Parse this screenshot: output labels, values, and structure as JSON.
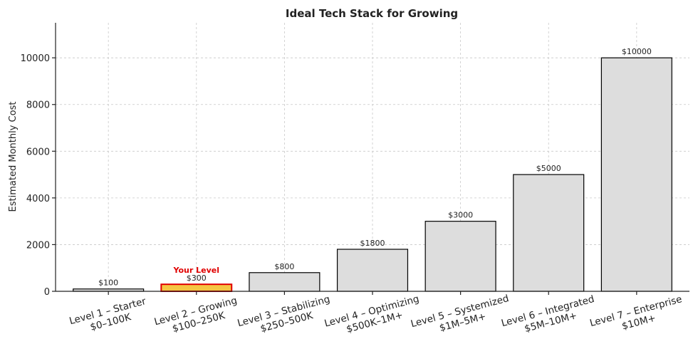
{
  "chart_data": {
    "type": "bar",
    "title": "Ideal Tech Stack for Growing",
    "xlabel": "",
    "ylabel": "Estimated Monthly Cost",
    "ylim": [
      0,
      11500
    ],
    "yticks": [
      0,
      2000,
      4000,
      6000,
      8000,
      10000
    ],
    "grid": true,
    "categories": [
      [
        "Level 1 – Starter",
        "$0–100K"
      ],
      [
        "Level 2 – Growing",
        "$100–250K"
      ],
      [
        "Level 3 – Stabilizing",
        "$250–500K"
      ],
      [
        "Level 4 – Optimizing",
        "$500K–1M+"
      ],
      [
        "Level 5 – Systemized",
        "$1M–5M+"
      ],
      [
        "Level 6 – Integrated",
        "$5M–10M+"
      ],
      [
        "Level 7 – Enterprise",
        "$10M+"
      ]
    ],
    "values": [
      100,
      300,
      800,
      1800,
      3000,
      5000,
      10000
    ],
    "value_labels": [
      "$100",
      "$300",
      "$800",
      "$1800",
      "$3000",
      "$5000",
      "$10000"
    ],
    "highlight_index": 1,
    "highlight_label": "Your Level",
    "colors": {
      "bar": "#dddddd",
      "bar_edge": "#000000",
      "highlight_fill": "#f5c542",
      "highlight_edge": "#e00000",
      "highlight_text": "#e00000"
    }
  }
}
